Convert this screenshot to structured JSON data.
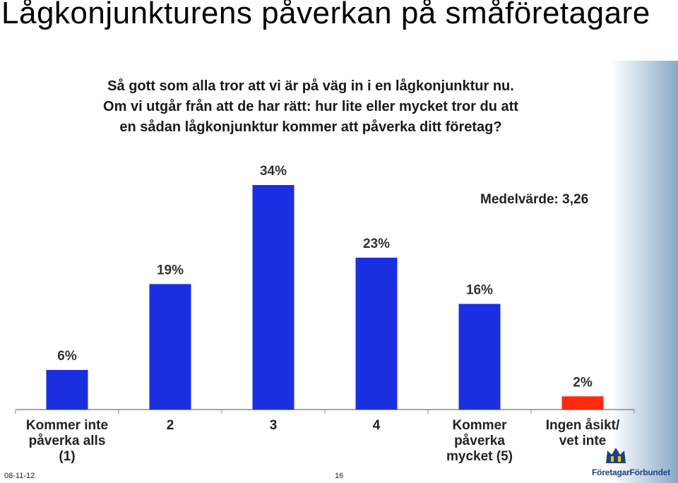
{
  "slide": {
    "title": "Lågkonjunkturens påverkan på småföretagare",
    "footer_date": "08-11-12",
    "page_number": "16",
    "logo_text": "FöretagarFörbundet"
  },
  "question_lines": [
    "Så gott som alla tror att vi är på väg in i en lågkonjunktur nu.",
    "Om vi utgår från att de har rätt: hur lite eller mycket tror du att",
    "en sådan lågkonjunktur kommer att påverka ditt företag?"
  ],
  "mean_label": "Medelvärde: 3,26",
  "chart_data": {
    "type": "bar",
    "categories": [
      [
        "Kommer inte",
        "påverka alls",
        "(1)"
      ],
      [
        "2"
      ],
      [
        "3"
      ],
      [
        "4"
      ],
      [
        "Kommer",
        "påverka",
        "mycket (5)"
      ],
      [
        "Ingen åsikt/",
        "vet inte"
      ]
    ],
    "values": [
      6,
      19,
      34,
      23,
      16,
      2
    ],
    "value_labels": [
      "6%",
      "19%",
      "34%",
      "23%",
      "16%",
      "2%"
    ],
    "colors": [
      "#1a2fe0",
      "#1a2fe0",
      "#1a2fe0",
      "#1a2fe0",
      "#1a2fe0",
      "#ff2a10"
    ],
    "ylim": [
      0,
      34
    ],
    "grid": false,
    "legend": "none"
  }
}
